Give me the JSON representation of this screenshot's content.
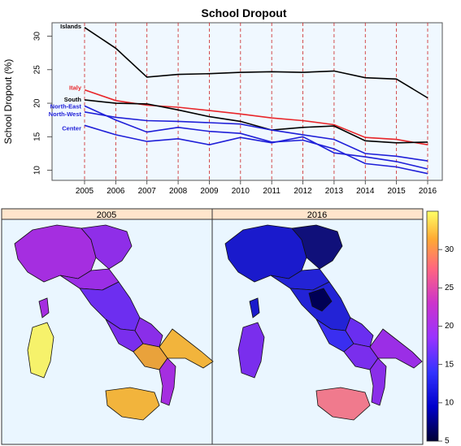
{
  "chart_data": [
    {
      "type": "line",
      "title": "School Dropout",
      "xlabel": "",
      "ylabel": "School Dropout (%)",
      "x": [
        2005,
        2006,
        2007,
        2008,
        2009,
        2010,
        2011,
        2012,
        2013,
        2014,
        2015,
        2016
      ],
      "ylim": [
        8.5,
        32
      ],
      "yticks": [
        10,
        15,
        20,
        25,
        30
      ],
      "grid": "vertical dashed red lines at each year",
      "series": [
        {
          "name": "Islands",
          "color": "#000000",
          "label_color": "#000000",
          "values": [
            31.3,
            28.2,
            23.9,
            24.3,
            24.4,
            24.6,
            24.7,
            24.6,
            24.8,
            23.8,
            23.6,
            20.8
          ]
        },
        {
          "name": "Italy",
          "color": "#e8262a",
          "label_color": "#e8262a",
          "values": [
            22.0,
            20.4,
            19.7,
            19.4,
            18.9,
            18.4,
            17.8,
            17.4,
            16.8,
            14.9,
            14.6,
            13.8
          ]
        },
        {
          "name": "South",
          "color": "#000000",
          "label_color": "#000000",
          "values": [
            20.5,
            20.0,
            19.9,
            19.0,
            18.0,
            17.3,
            16.0,
            16.4,
            16.6,
            14.4,
            14.1,
            14.2
          ]
        },
        {
          "name": "North-East",
          "color": "#1f1fd8",
          "label_color": "#1f1fd8",
          "values": [
            19.6,
            17.5,
            15.7,
            16.4,
            15.8,
            15.5,
            14.2,
            14.5,
            13.2,
            11.0,
            10.5,
            9.5
          ]
        },
        {
          "name": "North-West",
          "color": "#1f1fd8",
          "label_color": "#1f1fd8",
          "values": [
            18.7,
            17.9,
            17.4,
            17.3,
            17.1,
            16.9,
            16.0,
            15.3,
            14.6,
            12.5,
            12.1,
            11.4
          ]
        },
        {
          "name": "Center",
          "color": "#1f1fd8",
          "label_color": "#1f1fd8",
          "values": [
            16.7,
            15.3,
            14.3,
            14.7,
            13.8,
            14.9,
            14.1,
            15.0,
            12.6,
            12.0,
            11.3,
            10.2
          ]
        }
      ]
    },
    {
      "type": "heatmap",
      "title": "",
      "panels": [
        "2005",
        "2016"
      ],
      "colorbar": {
        "ticks": [
          "5",
          "10",
          "15",
          "20",
          "25",
          "30"
        ],
        "range": [
          5,
          35
        ],
        "colors": [
          "#000033",
          "#0000cc",
          "#3333ff",
          "#9933ff",
          "#cc33cc",
          "#ff6680",
          "#ffaa33",
          "#ffff66"
        ]
      },
      "regions_2005": [
        {
          "region": "North-West",
          "value": 21,
          "color": "#a52ee0"
        },
        {
          "region": "North-East",
          "value": 20,
          "color": "#8f2ee8"
        },
        {
          "region": "Center",
          "value": 17,
          "color": "#6d2ef0"
        },
        {
          "region": "South",
          "value": 22,
          "color": "#8a2ee9"
        },
        {
          "region": "Campania/Puglia",
          "value": 28,
          "color": "#e9a23b"
        },
        {
          "region": "Sicily",
          "value": 30,
          "color": "#f2b43c"
        },
        {
          "region": "Sardinia",
          "value": 33,
          "color": "#f6f26b"
        }
      ],
      "regions_2016": [
        {
          "region": "North-West",
          "value": 10,
          "color": "#1a1acc"
        },
        {
          "region": "North-East",
          "value": 8,
          "color": "#10107a"
        },
        {
          "region": "Center",
          "value": 9,
          "color": "#2323d6"
        },
        {
          "region": "South",
          "value": 16,
          "color": "#6a2ef0"
        },
        {
          "region": "Calabria",
          "value": 19,
          "color": "#8a2ee9"
        },
        {
          "region": "Sicily",
          "value": 24,
          "color": "#f07a8d"
        },
        {
          "region": "Sardinia",
          "value": 18,
          "color": "#7a2eed"
        }
      ]
    }
  ]
}
